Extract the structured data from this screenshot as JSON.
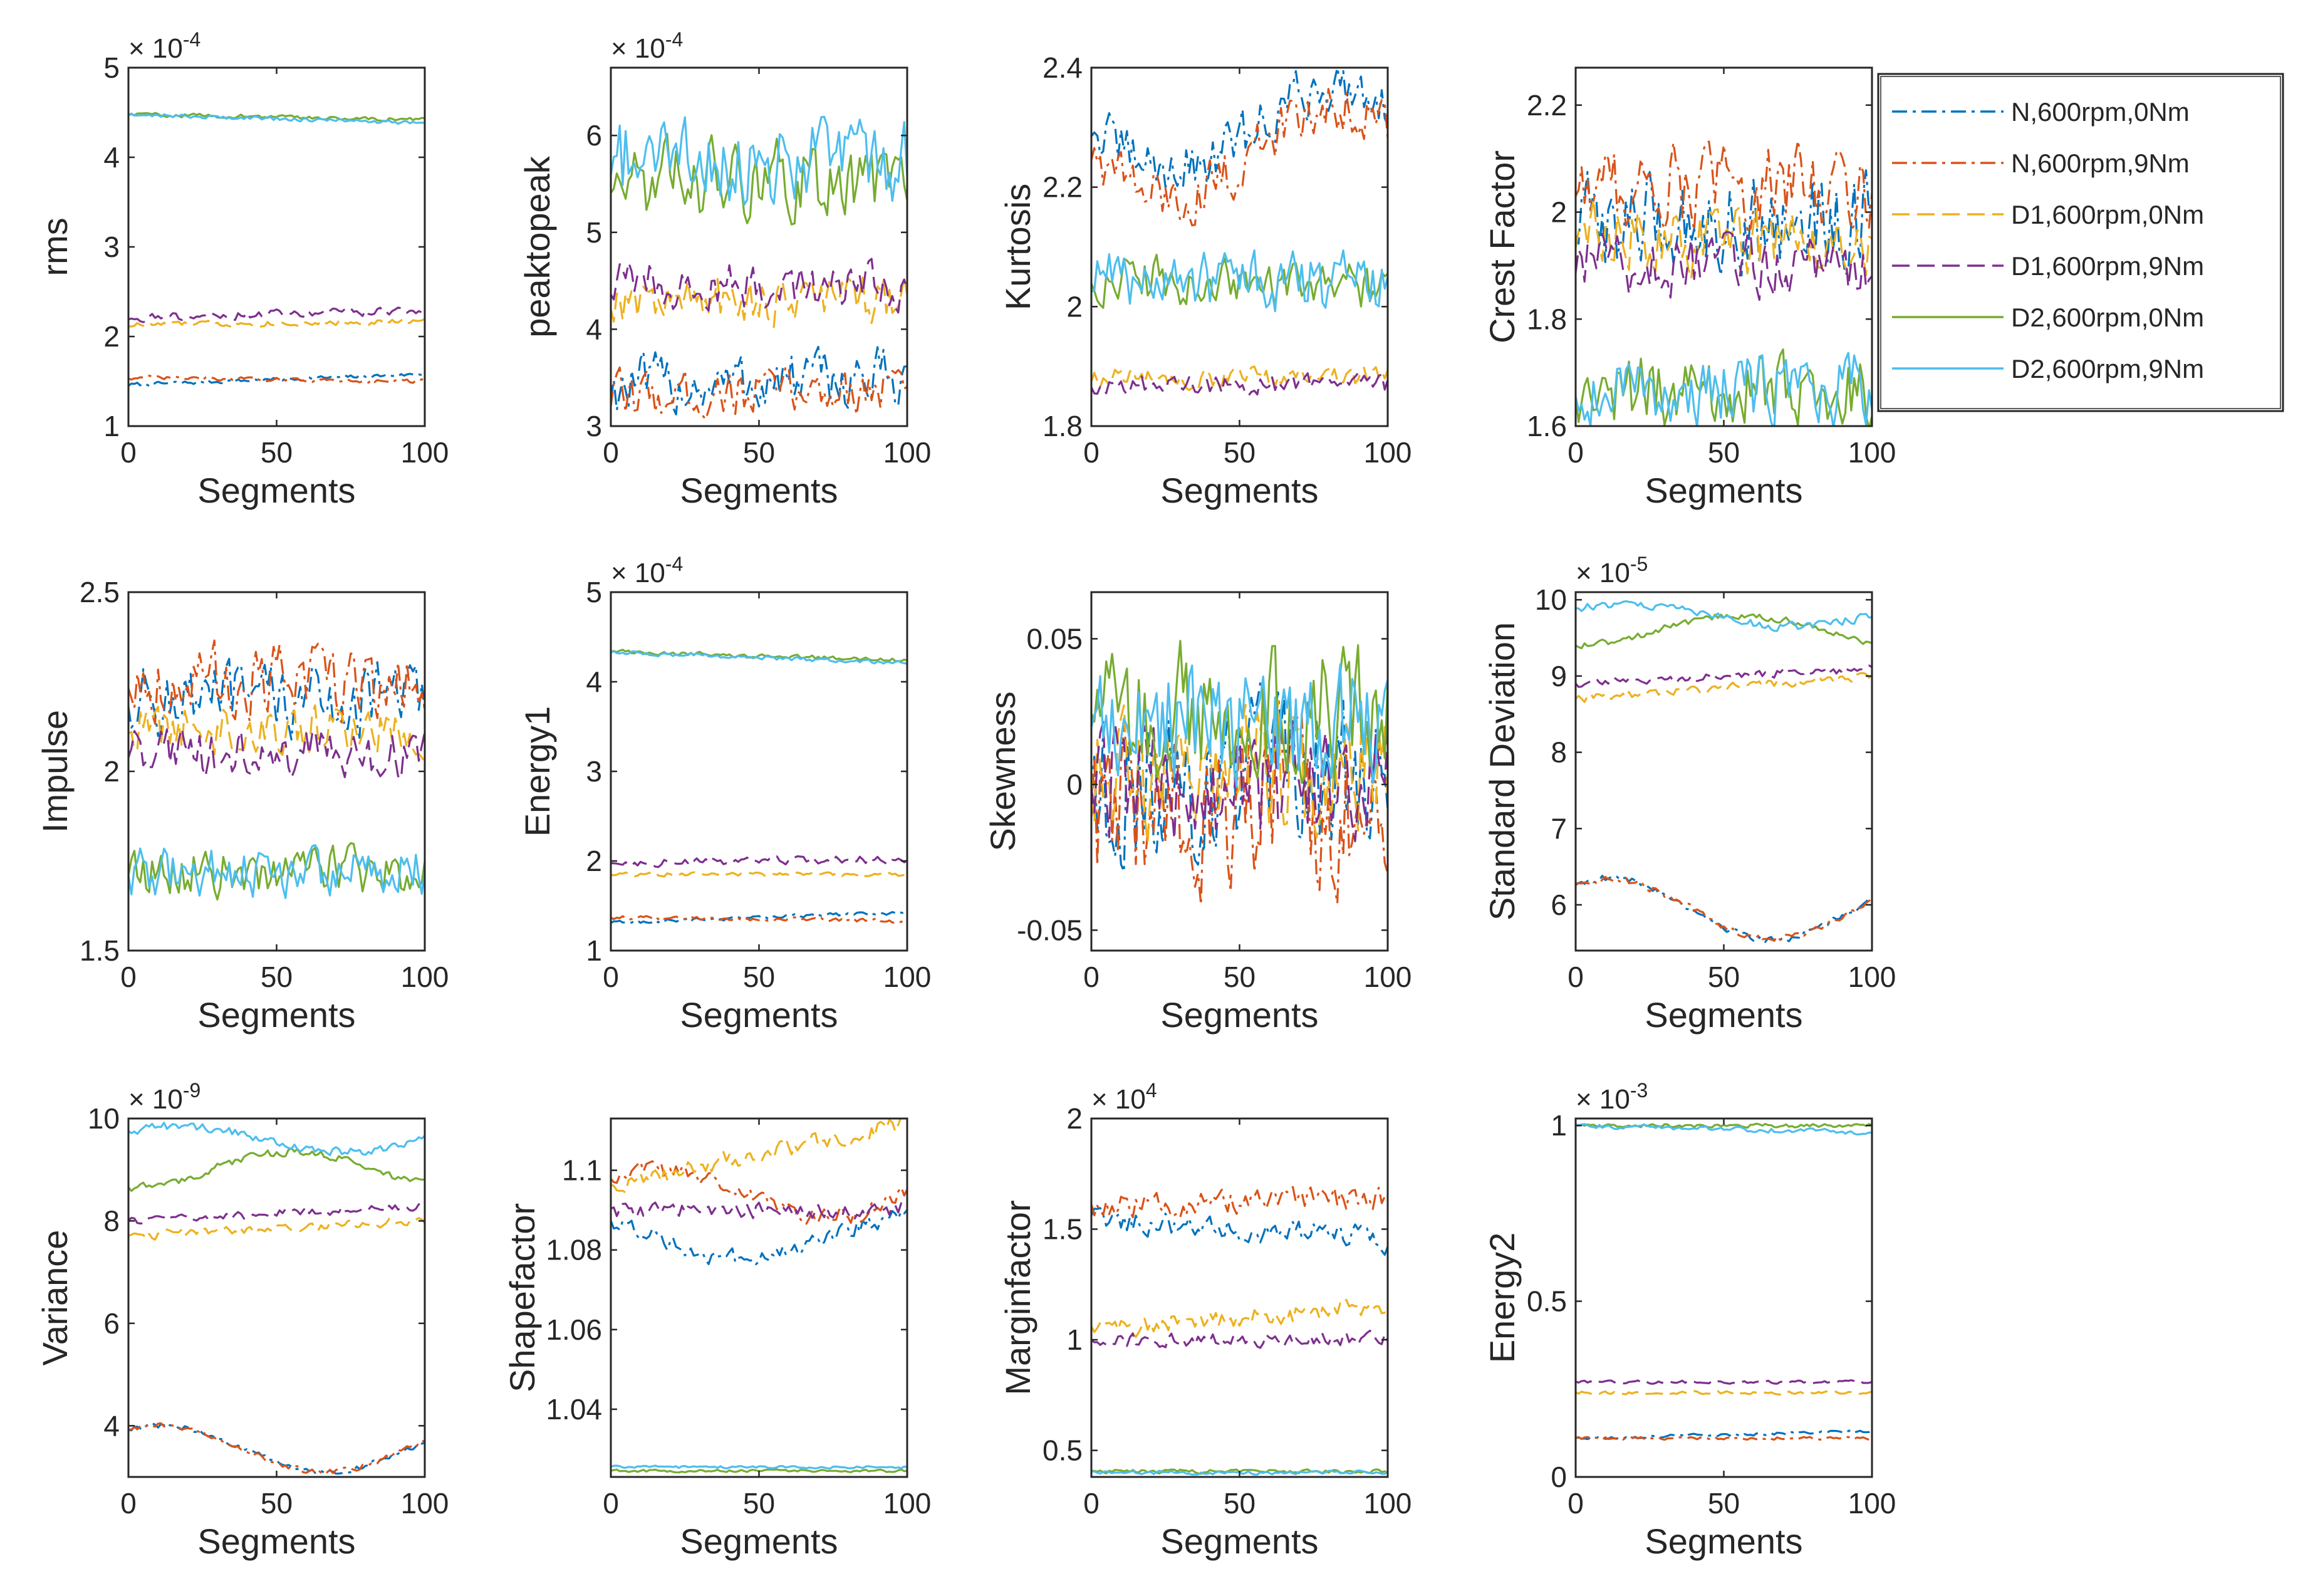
{
  "chart_data": {
    "type": "line",
    "xlabel": "Segments",
    "xlim": [
      0,
      100
    ],
    "x_ticks": [
      "0",
      "50",
      "100"
    ],
    "legend": {
      "placement": "right of top row",
      "series": [
        {
          "name": "N,600rpm,0Nm",
          "color": "#0072BD",
          "style": "dash-dot"
        },
        {
          "name": "N,600rpm,9Nm",
          "color": "#D95319",
          "style": "dash-dot"
        },
        {
          "name": "D1,600rpm,0Nm",
          "color": "#EDB120",
          "style": "dashed"
        },
        {
          "name": "D1,600rpm,9Nm",
          "color": "#7E2F8E",
          "style": "dashed"
        },
        {
          "name": "D2,600rpm,0Nm",
          "color": "#77AC30",
          "style": "solid"
        },
        {
          "name": "D2,600rpm,9Nm",
          "color": "#4DBEEE",
          "style": "solid"
        }
      ]
    },
    "panels": [
      {
        "ylabel": "rms",
        "exponent": "× 10^-4",
        "ylim": [
          1,
          5
        ],
        "y_ticks": [
          "1",
          "2",
          "3",
          "4",
          "5"
        ],
        "series": [
          {
            "base": 1.52,
            "noise": 0.02,
            "trend": 0.06
          },
          {
            "base": 1.52,
            "noise": 0.02,
            "trend": -0.02
          },
          {
            "base": 2.15,
            "noise": 0.03,
            "trend": 0.02
          },
          {
            "base": 2.25,
            "noise": 0.04,
            "trend": 0.04
          },
          {
            "base": 4.45,
            "noise": 0.02,
            "trend": -0.03
          },
          {
            "base": 4.43,
            "noise": 0.02,
            "trend": -0.05
          }
        ]
      },
      {
        "ylabel": "peaktopeak",
        "exponent": "× 10^-4",
        "ylim": [
          3,
          6.7
        ],
        "y_ticks": [
          "3",
          "4",
          "5",
          "6"
        ],
        "series": [
          {
            "base": 3.45,
            "noise": 0.28,
            "trend": 0.05
          },
          {
            "base": 3.35,
            "noise": 0.22,
            "trend": 0.05
          },
          {
            "base": 4.3,
            "noise": 0.22,
            "trend": 0
          },
          {
            "base": 4.45,
            "noise": 0.22,
            "trend": 0
          },
          {
            "base": 5.55,
            "noise": 0.35,
            "trend": 0
          },
          {
            "base": 5.75,
            "noise": 0.4,
            "trend": 0
          }
        ]
      },
      {
        "ylabel": "Kurtosis",
        "ylim": [
          1.8,
          2.4
        ],
        "y_ticks": [
          "1.8",
          "2",
          "2.2",
          "2.4"
        ],
        "series": [
          {
            "base": 2.3,
            "noise": 0.04,
            "wave": -0.07
          },
          {
            "base": 2.26,
            "noise": 0.04,
            "wave": 0.08,
            "wavePhase": 1.0
          },
          {
            "base": 1.88,
            "noise": 0.015,
            "trend": 0
          },
          {
            "base": 1.87,
            "noise": 0.015,
            "trend": 0
          },
          {
            "base": 2.04,
            "noise": 0.035,
            "trend": -0.01
          },
          {
            "base": 2.04,
            "noise": 0.045,
            "trend": 0
          }
        ]
      },
      {
        "ylabel": "Crest Factor",
        "ylim": [
          1.6,
          2.27
        ],
        "y_ticks": [
          "1.6",
          "1.8",
          "2",
          "2.2"
        ],
        "series": [
          {
            "base": 1.98,
            "noise": 0.08,
            "trend": 0
          },
          {
            "base": 2.05,
            "noise": 0.07,
            "trend": 0
          },
          {
            "base": 1.95,
            "noise": 0.06,
            "trend": 0
          },
          {
            "base": 1.9,
            "noise": 0.05,
            "trend": 0
          },
          {
            "base": 1.67,
            "noise": 0.06,
            "trend": 0
          },
          {
            "base": 1.67,
            "noise": 0.06,
            "trend": 0
          }
        ]
      },
      {
        "ylabel": "Impulse",
        "ylim": [
          1.5,
          2.5
        ],
        "y_ticks": [
          "1.5",
          "2",
          "2.5"
        ],
        "series": [
          {
            "base": 2.2,
            "noise": 0.09,
            "trend": 0
          },
          {
            "base": 2.25,
            "noise": 0.09,
            "trend": 0
          },
          {
            "base": 2.12,
            "noise": 0.07,
            "trend": 0
          },
          {
            "base": 2.05,
            "noise": 0.06,
            "trend": 0
          },
          {
            "base": 1.72,
            "noise": 0.06,
            "trend": 0
          },
          {
            "base": 1.72,
            "noise": 0.06,
            "trend": 0
          }
        ]
      },
      {
        "ylabel": "Energy1",
        "exponent": "× 10^-4",
        "ylim": [
          1,
          5
        ],
        "y_ticks": [
          "1",
          "2",
          "3",
          "4",
          "5"
        ],
        "series": [
          {
            "base": 1.37,
            "noise": 0.02,
            "trend": 0.06
          },
          {
            "base": 1.35,
            "noise": 0.02,
            "trend": -0.02
          },
          {
            "base": 1.85,
            "noise": 0.02,
            "trend": 0
          },
          {
            "base": 2.0,
            "noise": 0.04,
            "trend": 0.02
          },
          {
            "base": 4.29,
            "noise": 0.02,
            "trend": -0.05
          },
          {
            "base": 4.27,
            "noise": 0.02,
            "trend": -0.06
          }
        ]
      },
      {
        "ylabel": "Skewness",
        "ylim": [
          -0.057,
          0.066
        ],
        "y_ticks": [
          "-0.05",
          "0",
          "0.05"
        ],
        "series": [
          {
            "base": 0.0,
            "noise": 0.025,
            "trend": 0
          },
          {
            "base": -0.01,
            "noise": 0.025,
            "trend": 0
          },
          {
            "base": 0.005,
            "noise": 0.02,
            "trend": 0
          },
          {
            "base": 0.0,
            "noise": 0.018,
            "trend": 0
          },
          {
            "base": 0.025,
            "noise": 0.02,
            "trend": 0
          },
          {
            "base": 0.02,
            "noise": 0.02,
            "trend": 0
          }
        ]
      },
      {
        "ylabel": "Standard Deviation",
        "exponent": "× 10^-5",
        "ylim": [
          5.4,
          10.1
        ],
        "y_ticks": [
          "6",
          "7",
          "8",
          "9",
          "10"
        ],
        "series": [
          {
            "base": 5.95,
            "noise": 0.04,
            "wave": -0.4,
            "wavePhase": 1.3
          },
          {
            "base": 5.95,
            "noise": 0.04,
            "wave": 0.38,
            "wavePhase": 0.3
          },
          {
            "base": 8.85,
            "noise": 0.05,
            "trend": 0.15
          },
          {
            "base": 9.0,
            "noise": 0.05,
            "trend": 0.1
          },
          {
            "base": 9.6,
            "noise": 0.04,
            "wave": -0.2,
            "wavePhase": 0.5
          },
          {
            "base": 9.8,
            "noise": 0.05,
            "wave": 0.15,
            "wavePhase": 0.2
          }
        ]
      },
      {
        "ylabel": "Variance",
        "exponent": "× 10^-9",
        "ylim": [
          3,
          10
        ],
        "y_ticks": [
          "4",
          "6",
          "8",
          "10"
        ],
        "series": [
          {
            "base": 3.55,
            "noise": 0.05,
            "wave": -0.45,
            "wavePhase": 1.3
          },
          {
            "base": 3.55,
            "noise": 0.05,
            "wave": 0.45,
            "wavePhase": 0.3
          },
          {
            "base": 7.85,
            "noise": 0.08,
            "trend": 0.15
          },
          {
            "base": 8.15,
            "noise": 0.08,
            "trend": 0.15
          },
          {
            "base": 9.0,
            "noise": 0.07,
            "wave": -0.35,
            "wavePhase": 0.5
          },
          {
            "base": 9.6,
            "noise": 0.08,
            "wave": 0.25,
            "wavePhase": 0.2
          }
        ]
      },
      {
        "ylabel": "Shapefactor",
        "ylim": [
          1.023,
          1.113
        ],
        "y_ticks": [
          "1.04",
          "1.06",
          "1.08",
          "1.1"
        ],
        "series": [
          {
            "base": 1.083,
            "noise": 0.002,
            "wave": 0.005,
            "wavePhase": 0.7
          },
          {
            "base": 1.094,
            "noise": 0.002,
            "wave": 0.006,
            "wavePhase": 0.2
          },
          {
            "base": 1.104,
            "noise": 0.002,
            "trend": 0.008
          },
          {
            "base": 1.09,
            "noise": 0.002,
            "trend": 0
          },
          {
            "base": 1.0245,
            "noise": 0.0003,
            "trend": 0
          },
          {
            "base": 1.0255,
            "noise": 0.0003,
            "trend": 0
          }
        ]
      },
      {
        "ylabel": "Marginfactor",
        "exponent": "× 10^4",
        "ylim": [
          0.38,
          2.0
        ],
        "y_ticks": [
          "0.5",
          "1",
          "1.5",
          "2"
        ],
        "series": [
          {
            "base": 1.5,
            "noise": 0.05,
            "trend": -0.05
          },
          {
            "base": 1.62,
            "noise": 0.05,
            "trend": 0.02
          },
          {
            "base": 1.1,
            "noise": 0.04,
            "trend": 0.05
          },
          {
            "base": 1.0,
            "noise": 0.03,
            "trend": 0.01
          },
          {
            "base": 0.405,
            "noise": 0.008,
            "trend": 0
          },
          {
            "base": 0.4,
            "noise": 0.008,
            "trend": 0
          }
        ]
      },
      {
        "ylabel": "Energy2",
        "exponent": "× 10^-3",
        "ylim": [
          0,
          1.02
        ],
        "y_ticks": [
          "0",
          "0.5",
          "1"
        ],
        "series": [
          {
            "base": 0.12,
            "noise": 0.004,
            "trend": 0.01
          },
          {
            "base": 0.11,
            "noise": 0.004,
            "trend": 0
          },
          {
            "base": 0.24,
            "noise": 0.004,
            "trend": 0
          },
          {
            "base": 0.27,
            "noise": 0.004,
            "trend": 0
          },
          {
            "base": 1.0,
            "noise": 0.005,
            "trend": 0
          },
          {
            "base": 0.99,
            "noise": 0.006,
            "trend": -0.01
          }
        ]
      }
    ]
  }
}
